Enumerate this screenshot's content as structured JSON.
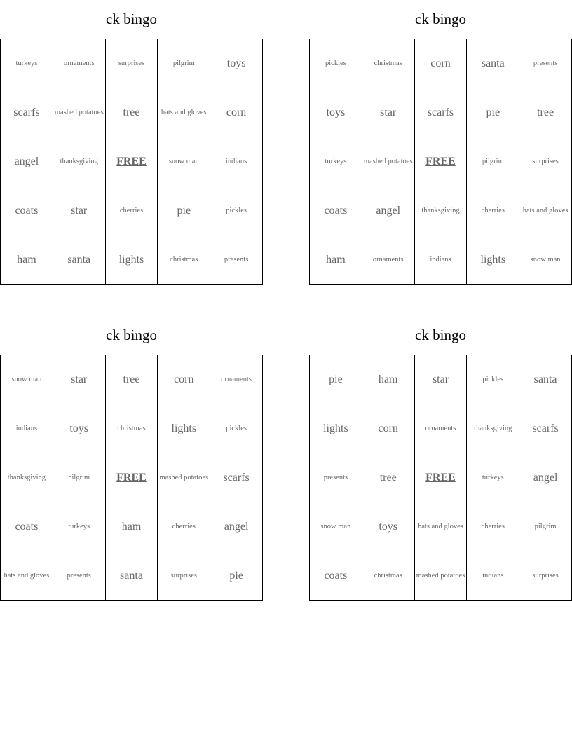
{
  "cards": [
    {
      "title": "ck bingo",
      "cells": [
        [
          "turkeys",
          "ornaments",
          "surprises",
          "pilgrim",
          "toys"
        ],
        [
          "scarfs",
          "mashed potatoes",
          "tree",
          "hats and gloves",
          "corn"
        ],
        [
          "angel",
          "thanksgiving",
          "FREE",
          "snow man",
          "indians"
        ],
        [
          "coats",
          "star",
          "cherries",
          "pie",
          "pickles"
        ],
        [
          "ham",
          "santa",
          "lights",
          "christmas",
          "presents"
        ]
      ]
    },
    {
      "title": "ck bingo",
      "cells": [
        [
          "pickles",
          "christmas",
          "corn",
          "santa",
          "presents"
        ],
        [
          "toys",
          "star",
          "scarfs",
          "pie",
          "tree"
        ],
        [
          "turkeys",
          "mashed potatoes",
          "FREE",
          "pilgrim",
          "surprises"
        ],
        [
          "coats",
          "angel",
          "thanksgiving",
          "cherries",
          "hats and gloves"
        ],
        [
          "ham",
          "ornaments",
          "indians",
          "lights",
          "snow man"
        ]
      ]
    },
    {
      "title": "ck bingo",
      "cells": [
        [
          "snow man",
          "star",
          "tree",
          "corn",
          "ornaments"
        ],
        [
          "indians",
          "toys",
          "christmas",
          "lights",
          "pickles"
        ],
        [
          "thanksgiving",
          "pilgrim",
          "FREE",
          "mashed potatoes",
          "scarfs"
        ],
        [
          "coats",
          "turkeys",
          "ham",
          "cherries",
          "angel"
        ],
        [
          "hats and gloves",
          "presents",
          "santa",
          "surprises",
          "pie"
        ]
      ]
    },
    {
      "title": "ck bingo",
      "cells": [
        [
          "pie",
          "ham",
          "star",
          "pickles",
          "santa"
        ],
        [
          "lights",
          "corn",
          "ornaments",
          "thanksgiving",
          "scarfs"
        ],
        [
          "presents",
          "tree",
          "FREE",
          "turkeys",
          "angel"
        ],
        [
          "snow man",
          "toys",
          "hats and gloves",
          "cherries",
          "pilgrim"
        ],
        [
          "coats",
          "christmas",
          "mashed potatoes",
          "indians",
          "surprises"
        ]
      ]
    }
  ]
}
